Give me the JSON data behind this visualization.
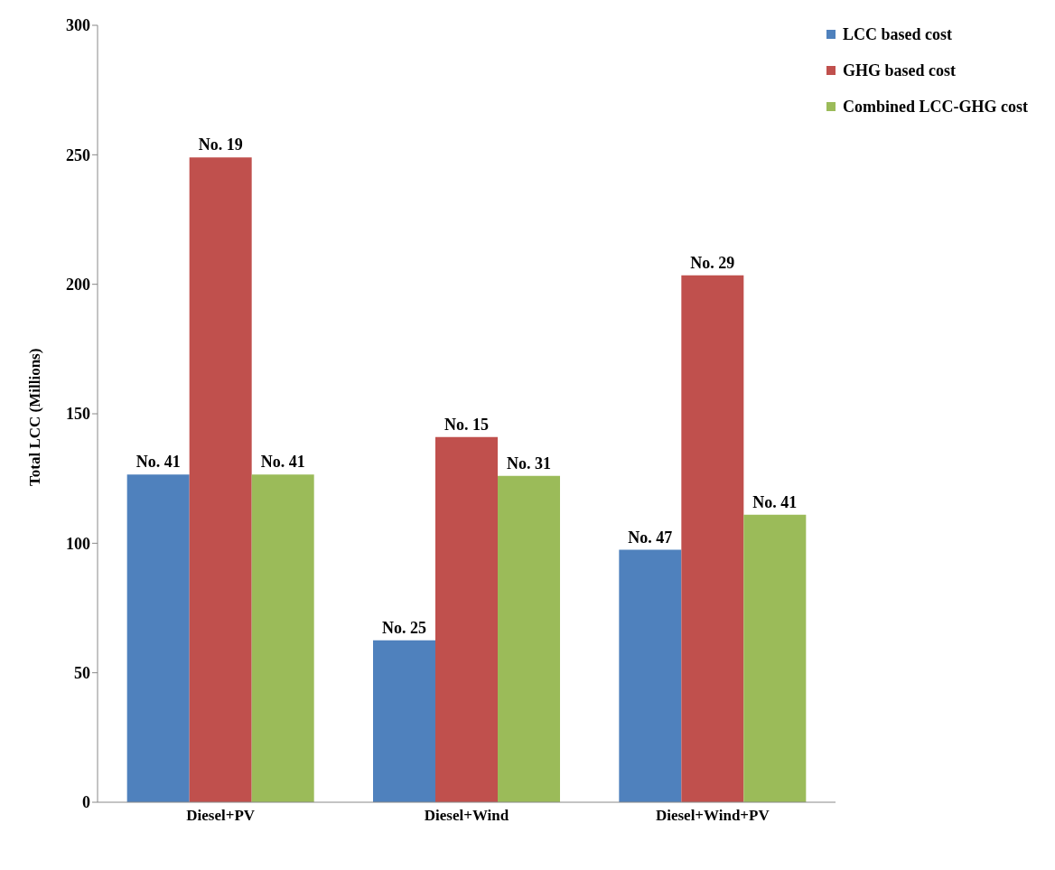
{
  "chart_data": {
    "type": "bar",
    "ylabel": "Total LCC (Millions)",
    "categories": [
      "Diesel+PV",
      "Diesel+Wind",
      "Diesel+Wind+PV"
    ],
    "series": [
      {
        "name": "LCC based cost",
        "color": "#4f81bd",
        "values": [
          126.5,
          62.5,
          97.5
        ]
      },
      {
        "name": "GHG based cost",
        "color": "#c0504d",
        "values": [
          249,
          141,
          203.5
        ]
      },
      {
        "name": "Combined LCC-GHG cost",
        "color": "#9bbb59",
        "values": [
          126.5,
          126,
          111
        ]
      }
    ],
    "annotations": [
      "No. 41",
      "No. 25",
      "No. 47",
      "No. 19",
      "No. 15",
      "No. 29",
      "No. 41",
      "No. 31",
      "No. 41"
    ],
    "ylim": [
      0,
      300
    ],
    "yticks": [
      0,
      50,
      100,
      150,
      200,
      250,
      300
    ],
    "grid": false,
    "legend": "top right"
  }
}
